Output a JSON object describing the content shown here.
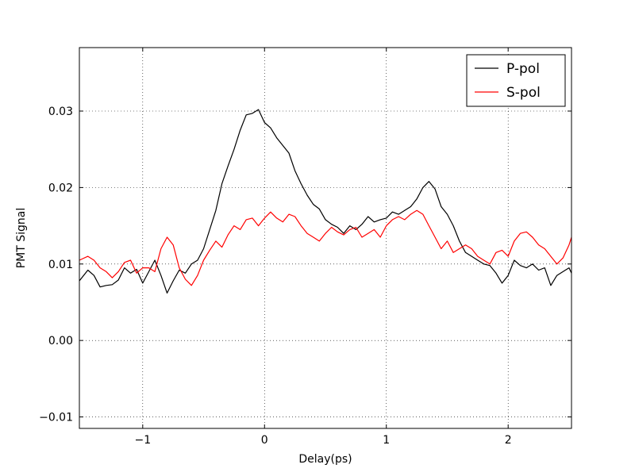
{
  "chart_data": {
    "type": "line",
    "title": "",
    "xlabel": "Delay(ps)",
    "ylabel": "PMT Signal",
    "xlim": [
      -1.52,
      2.52
    ],
    "ylim": [
      -0.0115,
      0.0383
    ],
    "xticks": [
      -1,
      0,
      1,
      2
    ],
    "xtick_labels": [
      "−1",
      "0",
      "1",
      "2"
    ],
    "yticks": [
      -0.01,
      0.0,
      0.01,
      0.02,
      0.03
    ],
    "ytick_labels": [
      "−0.01",
      "0.00",
      "0.01",
      "0.02",
      "0.03"
    ],
    "grid": true,
    "legend_position": "top-right",
    "series": [
      {
        "name": "P-pol",
        "color": "#000000",
        "x": [
          -1.52,
          -1.45,
          -1.4,
          -1.35,
          -1.3,
          -1.25,
          -1.2,
          -1.15,
          -1.1,
          -1.05,
          -1.0,
          -0.95,
          -0.9,
          -0.85,
          -0.8,
          -0.75,
          -0.7,
          -0.65,
          -0.6,
          -0.55,
          -0.5,
          -0.45,
          -0.4,
          -0.35,
          -0.3,
          -0.25,
          -0.2,
          -0.15,
          -0.1,
          -0.05,
          0.0,
          0.05,
          0.1,
          0.15,
          0.2,
          0.25,
          0.3,
          0.35,
          0.4,
          0.45,
          0.5,
          0.55,
          0.6,
          0.65,
          0.7,
          0.75,
          0.8,
          0.85,
          0.9,
          0.95,
          1.0,
          1.05,
          1.1,
          1.15,
          1.2,
          1.25,
          1.3,
          1.35,
          1.4,
          1.45,
          1.5,
          1.55,
          1.6,
          1.65,
          1.7,
          1.75,
          1.8,
          1.85,
          1.9,
          1.95,
          2.0,
          2.05,
          2.1,
          2.15,
          2.2,
          2.25,
          2.3,
          2.35,
          2.4,
          2.45,
          2.5,
          2.52
        ],
        "values": [
          0.0078,
          0.0092,
          0.0085,
          0.007,
          0.0072,
          0.0073,
          0.0079,
          0.0095,
          0.0088,
          0.0093,
          0.0075,
          0.009,
          0.0105,
          0.0085,
          0.0062,
          0.0078,
          0.0092,
          0.0088,
          0.01,
          0.0105,
          0.012,
          0.0145,
          0.017,
          0.0205,
          0.0228,
          0.025,
          0.0275,
          0.0295,
          0.0297,
          0.0302,
          0.0285,
          0.0278,
          0.0265,
          0.0255,
          0.0245,
          0.0222,
          0.0205,
          0.019,
          0.0178,
          0.0172,
          0.0158,
          0.0152,
          0.0148,
          0.014,
          0.015,
          0.0145,
          0.0152,
          0.0162,
          0.0155,
          0.0158,
          0.016,
          0.0168,
          0.0165,
          0.017,
          0.0175,
          0.0185,
          0.02,
          0.0208,
          0.0198,
          0.0175,
          0.0165,
          0.015,
          0.013,
          0.0115,
          0.011,
          0.0105,
          0.01,
          0.0098,
          0.0088,
          0.0075,
          0.0085,
          0.0105,
          0.0098,
          0.0095,
          0.01,
          0.0092,
          0.0095,
          0.0072,
          0.0085,
          0.009,
          0.0095,
          0.0088
        ]
      },
      {
        "name": "S-pol",
        "color": "#ff0000",
        "x": [
          -1.52,
          -1.45,
          -1.4,
          -1.35,
          -1.3,
          -1.25,
          -1.2,
          -1.15,
          -1.1,
          -1.05,
          -1.0,
          -0.95,
          -0.9,
          -0.85,
          -0.8,
          -0.75,
          -0.7,
          -0.65,
          -0.6,
          -0.55,
          -0.5,
          -0.45,
          -0.4,
          -0.35,
          -0.3,
          -0.25,
          -0.2,
          -0.15,
          -0.1,
          -0.05,
          0.0,
          0.05,
          0.1,
          0.15,
          0.2,
          0.25,
          0.3,
          0.35,
          0.4,
          0.45,
          0.5,
          0.55,
          0.6,
          0.65,
          0.7,
          0.75,
          0.8,
          0.85,
          0.9,
          0.95,
          1.0,
          1.05,
          1.1,
          1.15,
          1.2,
          1.25,
          1.3,
          1.35,
          1.4,
          1.45,
          1.5,
          1.55,
          1.6,
          1.65,
          1.7,
          1.75,
          1.8,
          1.85,
          1.9,
          1.95,
          2.0,
          2.05,
          2.1,
          2.15,
          2.2,
          2.25,
          2.3,
          2.35,
          2.4,
          2.45,
          2.5,
          2.52
        ],
        "values": [
          0.0105,
          0.011,
          0.0105,
          0.0095,
          0.009,
          0.0082,
          0.009,
          0.0102,
          0.0105,
          0.0088,
          0.0095,
          0.0095,
          0.009,
          0.012,
          0.0135,
          0.0125,
          0.0095,
          0.008,
          0.0072,
          0.0085,
          0.0105,
          0.0118,
          0.013,
          0.0122,
          0.0138,
          0.015,
          0.0145,
          0.0158,
          0.016,
          0.015,
          0.016,
          0.0168,
          0.016,
          0.0155,
          0.0165,
          0.0162,
          0.015,
          0.014,
          0.0135,
          0.013,
          0.014,
          0.0148,
          0.0142,
          0.0138,
          0.0145,
          0.0148,
          0.0135,
          0.014,
          0.0145,
          0.0135,
          0.015,
          0.0158,
          0.0162,
          0.0158,
          0.0165,
          0.017,
          0.0165,
          0.015,
          0.0135,
          0.012,
          0.013,
          0.0115,
          0.012,
          0.0125,
          0.012,
          0.011,
          0.0105,
          0.01,
          0.0115,
          0.0118,
          0.011,
          0.013,
          0.014,
          0.0142,
          0.0135,
          0.0125,
          0.012,
          0.011,
          0.01,
          0.0108,
          0.0125,
          0.0135
        ]
      }
    ]
  }
}
